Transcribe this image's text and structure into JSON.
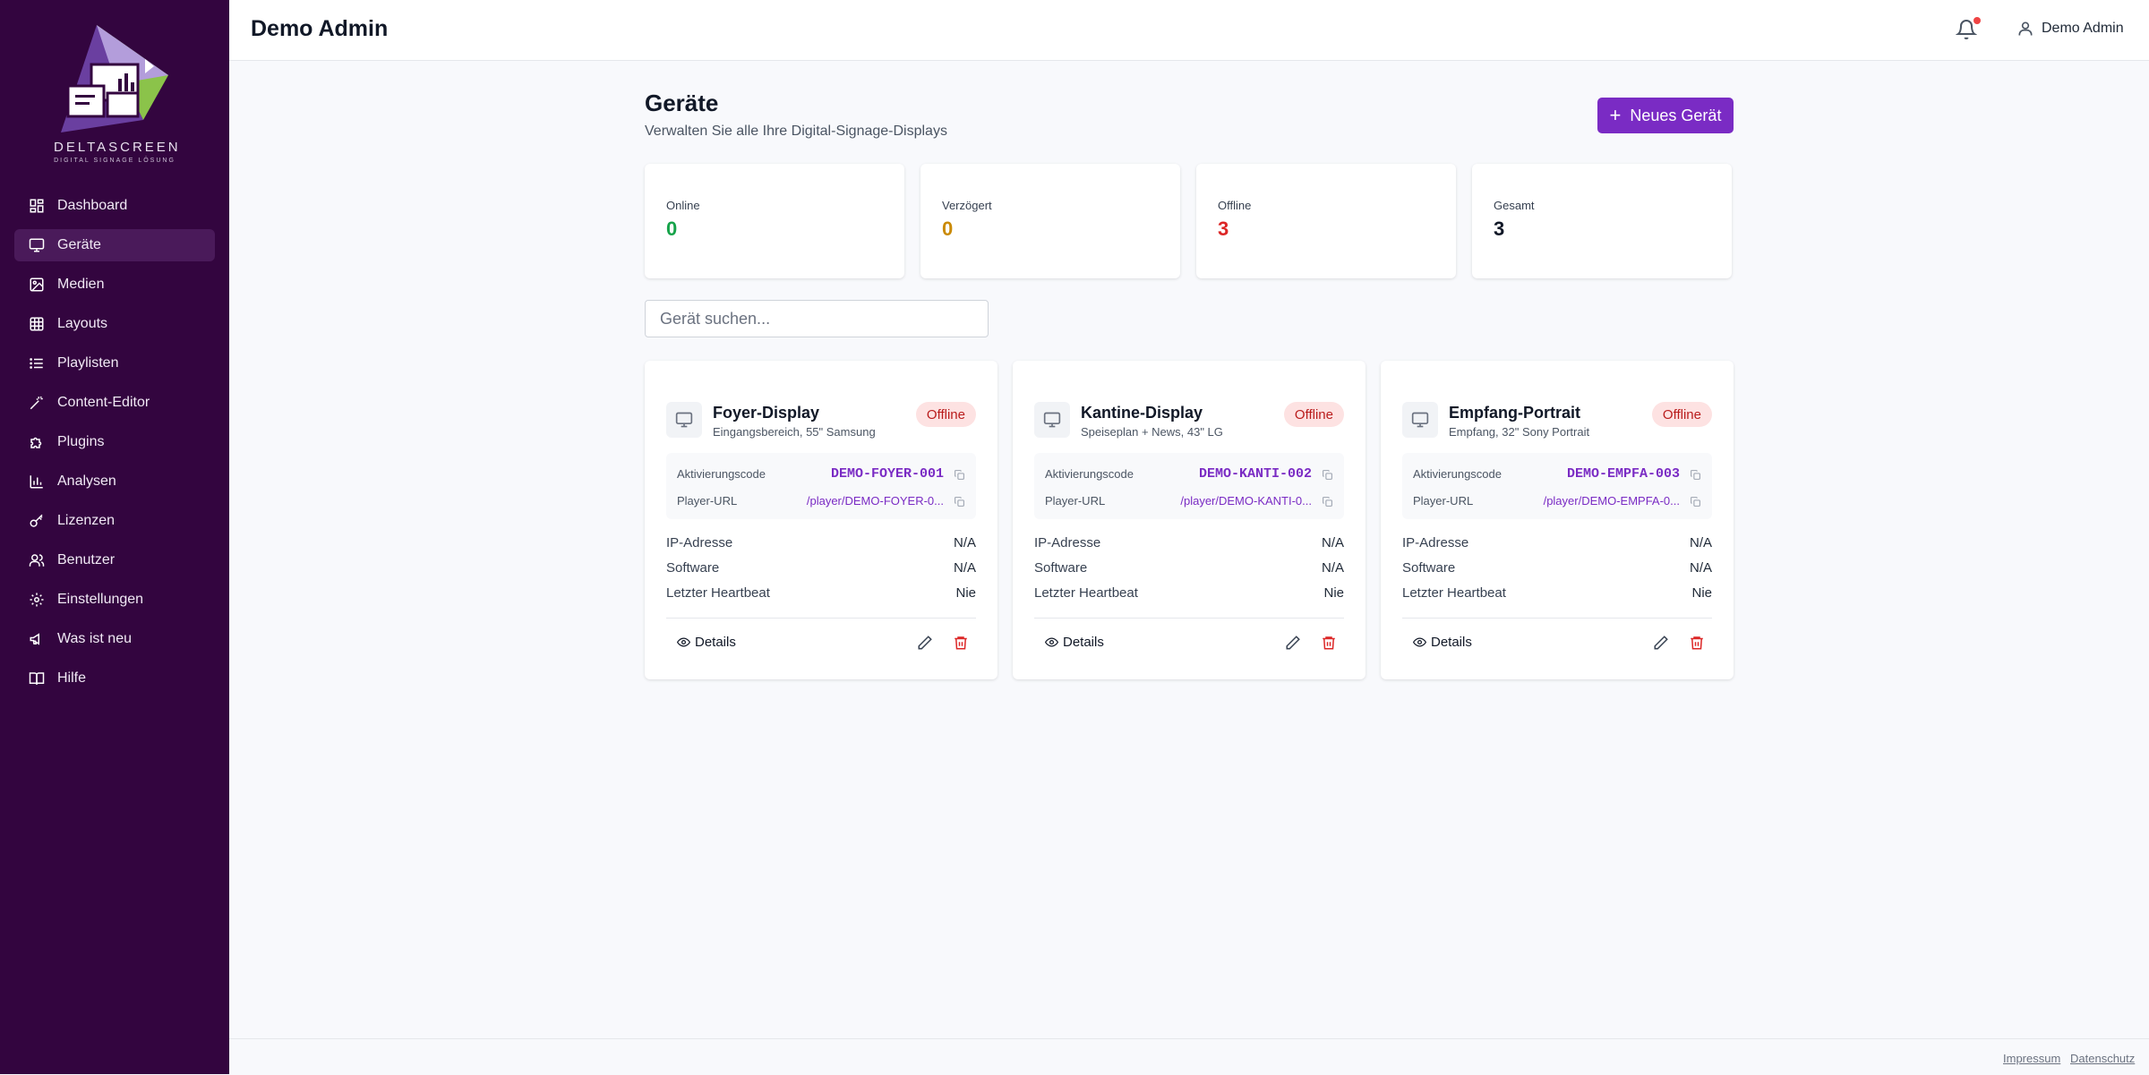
{
  "header": {
    "title": "Demo Admin",
    "user_name": "Demo Admin"
  },
  "logo": {
    "name": "DELTASCREEN",
    "tagline": "DIGITAL SIGNAGE LÖSUNG"
  },
  "sidebar": {
    "items": [
      {
        "label": "Dashboard",
        "icon": "dashboard-icon",
        "active": false
      },
      {
        "label": "Geräte",
        "icon": "monitor-icon",
        "active": true
      },
      {
        "label": "Medien",
        "icon": "image-icon",
        "active": false
      },
      {
        "label": "Layouts",
        "icon": "grid-icon",
        "active": false
      },
      {
        "label": "Playlisten",
        "icon": "list-icon",
        "active": false
      },
      {
        "label": "Content-Editor",
        "icon": "magic-wand-icon",
        "active": false
      },
      {
        "label": "Plugins",
        "icon": "puzzle-icon",
        "active": false
      },
      {
        "label": "Analysen",
        "icon": "bar-chart-icon",
        "active": false
      },
      {
        "label": "Lizenzen",
        "icon": "key-icon",
        "active": false
      },
      {
        "label": "Benutzer",
        "icon": "users-icon",
        "active": false
      },
      {
        "label": "Einstellungen",
        "icon": "gear-icon",
        "active": false
      },
      {
        "label": "Was ist neu",
        "icon": "megaphone-icon",
        "active": false
      },
      {
        "label": "Hilfe",
        "icon": "book-icon",
        "active": false
      }
    ]
  },
  "main": {
    "title": "Geräte",
    "subtitle": "Verwalten Sie alle Ihre Digital-Signage-Displays",
    "new_button": "Neues Gerät",
    "search_placeholder": "Gerät suchen..."
  },
  "stats": [
    {
      "label": "Online",
      "value": "0",
      "color": "#16a34a"
    },
    {
      "label": "Verzögert",
      "value": "0",
      "color": "#ca8a04"
    },
    {
      "label": "Offline",
      "value": "3",
      "color": "#dc2626"
    },
    {
      "label": "Gesamt",
      "value": "3",
      "color": "#111827"
    }
  ],
  "labels": {
    "code": "Aktivierungscode",
    "url": "Player-URL",
    "ip": "IP-Adresse",
    "software": "Software",
    "heartbeat": "Letzter Heartbeat",
    "details": "Details"
  },
  "devices": [
    {
      "name": "Foyer-Display",
      "description": "Eingangsbereich, 55\" Samsung",
      "status": "Offline",
      "code": "DEMO-FOYER-001",
      "url": "/player/DEMO-FOYER-0...",
      "ip": "N/A",
      "software": "N/A",
      "heartbeat": "Nie"
    },
    {
      "name": "Kantine-Display",
      "description": "Speiseplan + News, 43\" LG",
      "status": "Offline",
      "code": "DEMO-KANTI-002",
      "url": "/player/DEMO-KANTI-0...",
      "ip": "N/A",
      "software": "N/A",
      "heartbeat": "Nie"
    },
    {
      "name": "Empfang-Portrait",
      "description": "Empfang, 32\" Sony Portrait",
      "status": "Offline",
      "code": "DEMO-EMPFA-003",
      "url": "/player/DEMO-EMPFA-0...",
      "ip": "N/A",
      "software": "N/A",
      "heartbeat": "Nie"
    }
  ],
  "footer": {
    "impressum": "Impressum",
    "datenschutz": "Datenschutz"
  },
  "colors": {
    "sidebar_bg": "#33053f",
    "accent": "#7a2bc4",
    "offline": "#dc2626"
  }
}
